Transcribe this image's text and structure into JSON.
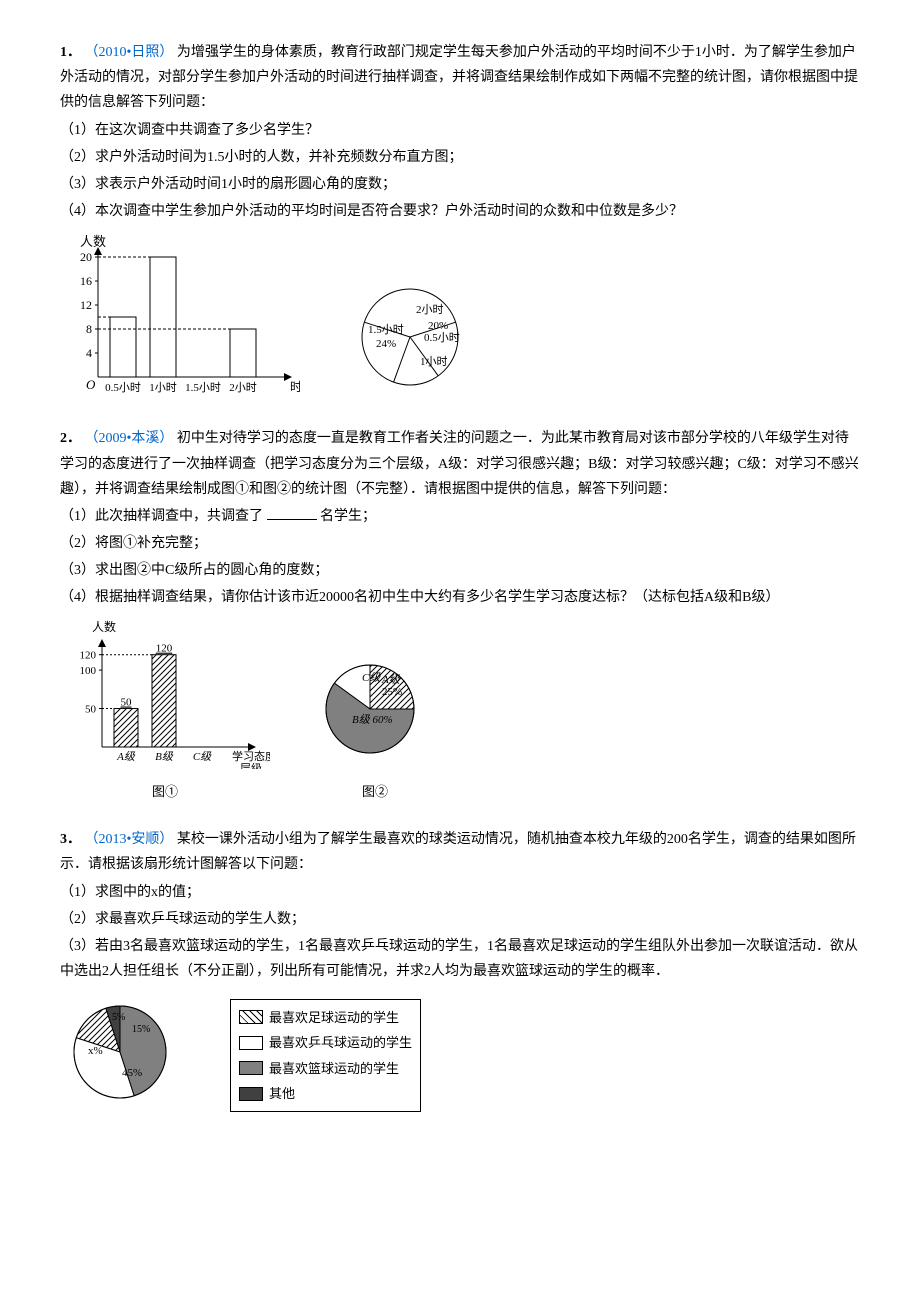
{
  "p1": {
    "num": "1．",
    "source": "（2010•日照）",
    "text": "为增强学生的身体素质，教育行政部门规定学生每天参加户外活动的平均时间不少于1小时．为了解学生参加户外活动的情况，对部分学生参加户外活动的时间进行抽样调查，并将调查结果绘制作成如下两幅不完整的统计图，请你根据图中提供的信息解答下列问题：",
    "q1": "（1）在这次调查中共调查了多少名学生？",
    "q2": "（2）求户外活动时间为1.5小时的人数，并补充频数分布直方图；",
    "q3": "（3）求表示户外活动时间1小时的扇形圆心角的度数；",
    "q4": "（4）本次调查中学生参加户外活动的平均时间是否符合要求？户外活动时间的众数和中位数是多少？",
    "bar": {
      "ylabel": "人数",
      "xlabel": "时间",
      "yticks": [
        4,
        8,
        12,
        16,
        20
      ],
      "categories": [
        "0.5小时",
        "1小时",
        "1.5小时",
        "2小时"
      ],
      "values": [
        10,
        20,
        null,
        8
      ],
      "bar_fill": "#ffffff",
      "bar_stroke": "#000000",
      "axis_color": "#000000"
    },
    "pie": {
      "stroke": "#000000",
      "slices": [
        {
          "label": "2小时",
          "label2": "",
          "start": 250,
          "end": 306
        },
        {
          "label": "20%",
          "label2": "0.5小时",
          "start": 306,
          "end": 378
        },
        {
          "label": "1小时",
          "label2": "",
          "start": 18,
          "end": 162
        },
        {
          "label": "1.5小时",
          "label2": "24%",
          "start": 162,
          "end": 250
        }
      ]
    }
  },
  "p2": {
    "num": "2．",
    "source": "（2009•本溪）",
    "text": "初中生对待学习的态度一直是教育工作者关注的问题之一．为此某市教育局对该市部分学校的八年级学生对待学习的态度进行了一次抽样调查（把学习态度分为三个层级，A级：对学习很感兴趣；B级：对学习较感兴趣；C级：对学习不感兴趣），并将调查结果绘制成图①和图②的统计图（不完整）．请根据图中提供的信息，解答下列问题：",
    "q1a": "（1）此次抽样调查中，共调查了",
    "q1b": "名学生；",
    "q2": "（2）将图①补充完整；",
    "q3": "（3）求出图②中C级所占的圆心角的度数；",
    "q4": "（4）根据抽样调查结果，请你估计该市近20000名初中生中大约有多少名学生学习态度达标？（达标包括A级和B级）",
    "bar": {
      "ylabel": "人数",
      "xlabel": "学习态度\n层级",
      "yticks": [
        50,
        100,
        120
      ],
      "categories": [
        "A级",
        "B级",
        "C级"
      ],
      "values": [
        50,
        120,
        null
      ],
      "bar_labels": [
        "50",
        "120",
        ""
      ],
      "hatch": true,
      "caption": "图①"
    },
    "pie": {
      "caption": "图②",
      "slices": [
        {
          "label": "C级",
          "fill": "#ffffff"
        },
        {
          "label": "A级",
          "label2": "25%",
          "fill": "#ffffff",
          "hatch": true
        },
        {
          "label": "B级 60%",
          "fill": "#808080"
        }
      ]
    }
  },
  "p3": {
    "num": "3．",
    "source": "（2013•安顺）",
    "text": "某校一课外活动小组为了解学生最喜欢的球类运动情况，随机抽查本校九年级的200名学生，调查的结果如图所示．请根据该扇形统计图解答以下问题：",
    "q1": "（1）求图中的x的值；",
    "q2": "（2）求最喜欢乒乓球运动的学生人数；",
    "q3": "（3）若由3名最喜欢篮球运动的学生，1名最喜欢乒乓球运动的学生，1名最喜欢足球运动的学生组队外出参加一次联谊活动．欲从中选出2人担任组长（不分正副），列出所有可能情况，并求2人均为最喜欢篮球运动的学生的概率．",
    "pie": {
      "slices": [
        {
          "label": "5%",
          "fill": "#404040"
        },
        {
          "label": "15%",
          "fill": "#ffffff",
          "hatch": true
        },
        {
          "label": "x%",
          "fill": "#ffffff"
        },
        {
          "label": "45%",
          "fill": "#808080"
        }
      ]
    },
    "legend": [
      {
        "text": "最喜欢足球运动的学生",
        "hatch": true,
        "fill": "#ffffff"
      },
      {
        "text": "最喜欢乒乓球运动的学生",
        "hatch": false,
        "fill": "#ffffff"
      },
      {
        "text": "最喜欢篮球运动的学生",
        "hatch": false,
        "fill": "#808080"
      },
      {
        "text": "其他",
        "hatch": false,
        "fill": "#404040"
      }
    ]
  }
}
